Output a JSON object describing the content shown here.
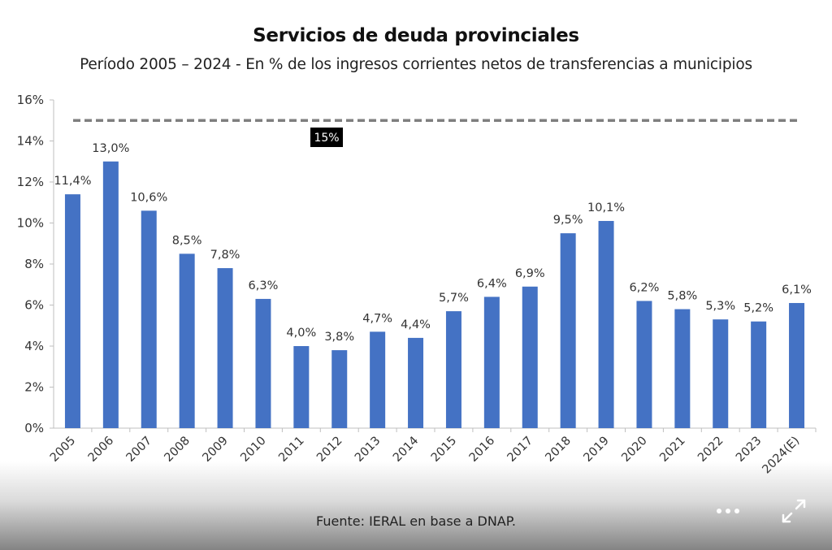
{
  "header": {
    "title": "Servicios de deuda provinciales",
    "subtitle": "Período 2005 – 2024 - En % de los ingresos corrientes netos de transferencias a municipios"
  },
  "chart_data": {
    "type": "bar",
    "title": "Servicios de deuda provinciales",
    "subtitle": "Período 2005 – 2024 - En % de los ingresos corrientes netos de transferencias a municipios",
    "categories": [
      "2005",
      "2006",
      "2007",
      "2008",
      "2009",
      "2010",
      "2011",
      "2012",
      "2013",
      "2014",
      "2015",
      "2016",
      "2017",
      "2018",
      "2019",
      "2020",
      "2021",
      "2022",
      "2023",
      "2024(E)"
    ],
    "values": [
      11.4,
      13.0,
      10.6,
      8.5,
      7.8,
      6.3,
      4.0,
      3.8,
      4.7,
      4.4,
      5.7,
      6.4,
      6.9,
      9.5,
      10.1,
      6.2,
      5.8,
      5.3,
      5.2,
      6.1
    ],
    "data_labels": [
      "11,4%",
      "13,0%",
      "10,6%",
      "8,5%",
      "7,8%",
      "6,3%",
      "4,0%",
      "3,8%",
      "4,7%",
      "4,4%",
      "5,7%",
      "6,4%",
      "6,9%",
      "9,5%",
      "10,1%",
      "6,2%",
      "5,8%",
      "5,3%",
      "5,2%",
      "6,1%"
    ],
    "ylim": [
      0,
      16
    ],
    "yticks": [
      0,
      2,
      4,
      6,
      8,
      10,
      12,
      14,
      16
    ],
    "ytick_labels": [
      "0%",
      "2%",
      "4%",
      "6%",
      "8%",
      "10%",
      "12%",
      "14%",
      "16%"
    ],
    "xlabel": "",
    "ylabel": "",
    "grid": false,
    "bar_color": "#4472C4",
    "reference_line": {
      "value": 15,
      "label": "15%",
      "style": "dashed",
      "color": "#7f7f7f"
    }
  },
  "footer": {
    "source": "Fuente: IERAL en base a DNAP.",
    "more_icon": "more-horizontal-icon",
    "expand_icon": "expand-icon"
  }
}
